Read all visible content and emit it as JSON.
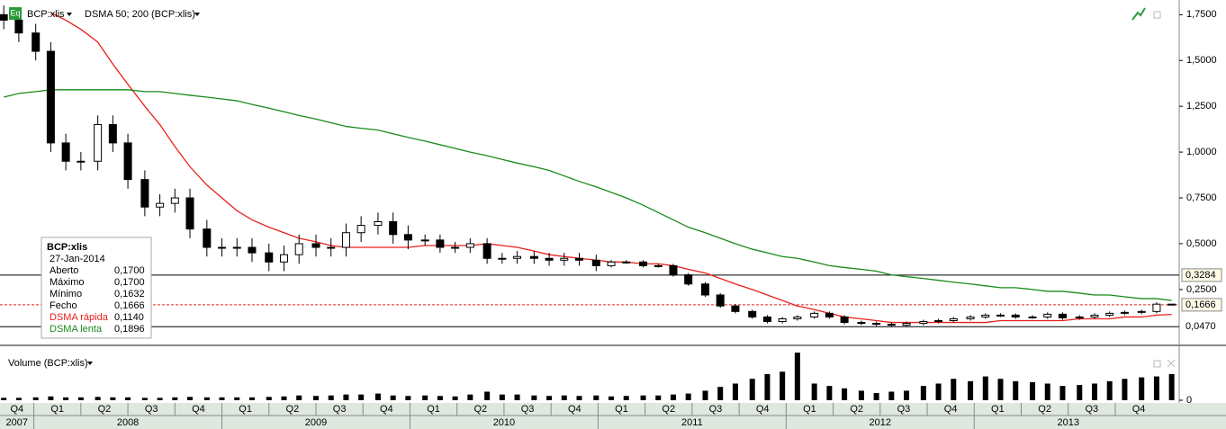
{
  "header": {
    "icon": "Eq",
    "symbol": "BCP:xlis",
    "indicator": "DSMA 50; 200 (BCP:xlis)",
    "volume_title": "Volume (BCP:xlis)"
  },
  "info_box": {
    "title": "BCP:xlis",
    "date": "27-Jan-2014",
    "rows": [
      [
        "Aberto",
        "0,1700"
      ],
      [
        "Máximo",
        "0,1700"
      ],
      [
        "Mínimo",
        "0,1632"
      ],
      [
        "Fecho",
        "0,1666"
      ],
      [
        "DSMA rápida",
        "0,1140"
      ],
      [
        "DSMA lenta",
        "0,1896"
      ]
    ]
  },
  "chart_data": {
    "type": "candlestick",
    "x": [
      2007.84,
      2007.92,
      2008.01,
      2008.09,
      2008.17,
      2008.25,
      2008.34,
      2008.42,
      2008.5,
      2008.59,
      2008.67,
      2008.75,
      2008.83,
      2008.92,
      2009.0,
      2009.08,
      2009.16,
      2009.25,
      2009.33,
      2009.41,
      2009.5,
      2009.58,
      2009.66,
      2009.74,
      2009.83,
      2009.91,
      2009.99,
      2010.08,
      2010.16,
      2010.24,
      2010.32,
      2010.41,
      2010.49,
      2010.57,
      2010.66,
      2010.74,
      2010.82,
      2010.9,
      2010.99,
      2011.07,
      2011.15,
      2011.24,
      2011.32,
      2011.4,
      2011.48,
      2011.57,
      2011.65,
      2011.73,
      2011.82,
      2011.9,
      2011.98,
      2012.06,
      2012.15,
      2012.23,
      2012.31,
      2012.4,
      2012.48,
      2012.56,
      2012.64,
      2012.73,
      2012.81,
      2012.89,
      2012.98,
      2013.06,
      2013.14,
      2013.22,
      2013.31,
      2013.39,
      2013.47,
      2013.56,
      2013.64,
      2013.72,
      2013.8,
      2013.89,
      2013.97,
      2014.05
    ],
    "open": [
      1.75,
      1.72,
      1.65,
      1.55,
      1.05,
      0.95,
      0.95,
      1.15,
      1.05,
      0.85,
      0.7,
      0.72,
      0.75,
      0.58,
      0.48,
      0.48,
      0.48,
      0.45,
      0.4,
      0.44,
      0.5,
      0.48,
      0.48,
      0.56,
      0.6,
      0.62,
      0.55,
      0.52,
      0.52,
      0.48,
      0.48,
      0.5,
      0.42,
      0.42,
      0.43,
      0.42,
      0.41,
      0.42,
      0.41,
      0.38,
      0.4,
      0.4,
      0.38,
      0.38,
      0.33,
      0.28,
      0.22,
      0.16,
      0.13,
      0.1,
      0.075,
      0.09,
      0.1,
      0.12,
      0.1,
      0.07,
      0.065,
      0.06,
      0.055,
      0.065,
      0.075,
      0.08,
      0.09,
      0.1,
      0.11,
      0.11,
      0.1,
      0.1,
      0.115,
      0.095,
      0.1,
      0.11,
      0.12,
      0.125,
      0.13,
      0.17
    ],
    "high": [
      1.8,
      1.77,
      1.7,
      1.6,
      1.1,
      1.0,
      1.2,
      1.2,
      1.1,
      0.9,
      0.77,
      0.8,
      0.8,
      0.63,
      0.53,
      0.53,
      0.53,
      0.5,
      0.49,
      0.55,
      0.55,
      0.53,
      0.61,
      0.65,
      0.67,
      0.67,
      0.6,
      0.55,
      0.55,
      0.51,
      0.53,
      0.53,
      0.45,
      0.46,
      0.46,
      0.45,
      0.45,
      0.45,
      0.44,
      0.41,
      0.41,
      0.41,
      0.39,
      0.39,
      0.34,
      0.29,
      0.23,
      0.17,
      0.14,
      0.11,
      0.1,
      0.11,
      0.13,
      0.13,
      0.11,
      0.08,
      0.075,
      0.07,
      0.075,
      0.085,
      0.09,
      0.1,
      0.11,
      0.12,
      0.12,
      0.12,
      0.11,
      0.125,
      0.125,
      0.11,
      0.12,
      0.13,
      0.135,
      0.14,
      0.18,
      0.17
    ],
    "low": [
      1.67,
      1.6,
      1.5,
      1.0,
      0.9,
      0.9,
      0.9,
      1.0,
      0.8,
      0.65,
      0.65,
      0.67,
      0.53,
      0.43,
      0.43,
      0.43,
      0.4,
      0.35,
      0.35,
      0.39,
      0.43,
      0.43,
      0.43,
      0.51,
      0.55,
      0.5,
      0.47,
      0.49,
      0.45,
      0.45,
      0.45,
      0.39,
      0.39,
      0.39,
      0.39,
      0.38,
      0.38,
      0.38,
      0.35,
      0.37,
      0.39,
      0.37,
      0.37,
      0.32,
      0.27,
      0.21,
      0.15,
      0.12,
      0.09,
      0.065,
      0.065,
      0.08,
      0.09,
      0.09,
      0.06,
      0.055,
      0.05,
      0.045,
      0.045,
      0.055,
      0.065,
      0.07,
      0.08,
      0.09,
      0.1,
      0.09,
      0.09,
      0.09,
      0.085,
      0.085,
      0.09,
      0.1,
      0.11,
      0.115,
      0.12,
      0.1632
    ],
    "close": [
      1.72,
      1.65,
      1.55,
      1.05,
      0.95,
      0.95,
      1.15,
      1.05,
      0.85,
      0.7,
      0.72,
      0.75,
      0.58,
      0.48,
      0.48,
      0.48,
      0.45,
      0.4,
      0.44,
      0.5,
      0.48,
      0.48,
      0.56,
      0.6,
      0.62,
      0.55,
      0.52,
      0.52,
      0.48,
      0.48,
      0.5,
      0.42,
      0.42,
      0.43,
      0.42,
      0.41,
      0.42,
      0.41,
      0.38,
      0.4,
      0.4,
      0.38,
      0.38,
      0.33,
      0.28,
      0.22,
      0.16,
      0.13,
      0.1,
      0.075,
      0.09,
      0.1,
      0.12,
      0.1,
      0.07,
      0.065,
      0.06,
      0.055,
      0.065,
      0.075,
      0.08,
      0.09,
      0.1,
      0.11,
      0.11,
      0.1,
      0.1,
      0.115,
      0.095,
      0.1,
      0.11,
      0.12,
      0.125,
      0.13,
      0.17,
      0.1666
    ],
    "series": [
      {
        "name": "DSMA rápida",
        "color": "#e8201c",
        "values": [
          null,
          null,
          null,
          1.76,
          1.72,
          1.67,
          1.6,
          1.48,
          1.37,
          1.25,
          1.15,
          1.03,
          0.92,
          0.82,
          0.75,
          0.68,
          0.63,
          0.59,
          0.56,
          0.53,
          0.51,
          0.49,
          0.48,
          0.48,
          0.48,
          0.48,
          0.48,
          0.49,
          0.49,
          0.49,
          0.49,
          0.5,
          0.49,
          0.48,
          0.46,
          0.44,
          0.43,
          0.42,
          0.41,
          0.4,
          0.4,
          0.39,
          0.39,
          0.38,
          0.36,
          0.34,
          0.31,
          0.28,
          0.25,
          0.22,
          0.19,
          0.16,
          0.14,
          0.12,
          0.1,
          0.09,
          0.08,
          0.07,
          0.07,
          0.07,
          0.07,
          0.07,
          0.07,
          0.07,
          0.08,
          0.08,
          0.08,
          0.08,
          0.08,
          0.09,
          0.09,
          0.09,
          0.1,
          0.1,
          0.11,
          0.114
        ]
      },
      {
        "name": "DSMA lenta",
        "color": "#1a8a1a",
        "values": [
          1.3,
          1.32,
          1.33,
          1.34,
          1.34,
          1.34,
          1.34,
          1.34,
          1.34,
          1.33,
          1.33,
          1.32,
          1.31,
          1.3,
          1.29,
          1.28,
          1.26,
          1.24,
          1.22,
          1.2,
          1.18,
          1.16,
          1.14,
          1.13,
          1.12,
          1.1,
          1.08,
          1.06,
          1.04,
          1.02,
          1.0,
          0.98,
          0.96,
          0.94,
          0.92,
          0.9,
          0.87,
          0.84,
          0.81,
          0.78,
          0.75,
          0.71,
          0.67,
          0.63,
          0.59,
          0.56,
          0.53,
          0.5,
          0.47,
          0.45,
          0.43,
          0.42,
          0.4,
          0.38,
          0.37,
          0.36,
          0.35,
          0.33,
          0.32,
          0.31,
          0.3,
          0.29,
          0.28,
          0.27,
          0.26,
          0.26,
          0.25,
          0.24,
          0.24,
          0.23,
          0.22,
          0.22,
          0.21,
          0.2,
          0.2,
          0.19
        ]
      }
    ],
    "volume": [
      5,
      5,
      6,
      8,
      6,
      6,
      7,
      6,
      6,
      5,
      5,
      6,
      7,
      6,
      6,
      6,
      6,
      7,
      8,
      10,
      9,
      10,
      12,
      12,
      14,
      10,
      9,
      10,
      9,
      8,
      12,
      18,
      12,
      12,
      10,
      9,
      10,
      9,
      10,
      8,
      9,
      10,
      10,
      12,
      14,
      20,
      28,
      35,
      45,
      55,
      60,
      100,
      35,
      30,
      25,
      20,
      15,
      18,
      20,
      30,
      35,
      45,
      40,
      50,
      45,
      40,
      38,
      35,
      30,
      32,
      35,
      40,
      45,
      48,
      50,
      55
    ],
    "xlim": [
      2007.82,
      2014.09
    ],
    "ylim": [
      -0.05,
      1.83
    ],
    "vlim": [
      0,
      104
    ],
    "yticks": [
      {
        "value": 0.25,
        "label": "0,2500"
      },
      {
        "value": 0.5,
        "label": "0,5000"
      },
      {
        "value": 0.75,
        "label": "0,7500"
      },
      {
        "value": 1.0,
        "label": "1,0000"
      },
      {
        "value": 1.25,
        "label": "1,2500"
      },
      {
        "value": 1.5,
        "label": "1,5000"
      },
      {
        "value": 1.75,
        "label": "1,7500"
      }
    ],
    "vticks": [
      0
    ],
    "hlines": [
      {
        "value": 0.3284,
        "label": "0,3284"
      },
      {
        "value": 0.1666,
        "label": "0,1666"
      },
      {
        "value": 0.047,
        "label": "0,0470"
      }
    ],
    "quarters": [
      {
        "value": 2007.75,
        "label": "Q4"
      },
      {
        "value": 2008.0,
        "label": "Q1"
      },
      {
        "value": 2008.25,
        "label": "Q2"
      },
      {
        "value": 2008.5,
        "label": "Q3"
      },
      {
        "value": 2008.75,
        "label": "Q4"
      },
      {
        "value": 2009.0,
        "label": "Q1"
      },
      {
        "value": 2009.25,
        "label": "Q2"
      },
      {
        "value": 2009.5,
        "label": "Q3"
      },
      {
        "value": 2009.75,
        "label": "Q4"
      },
      {
        "value": 2010.0,
        "label": "Q1"
      },
      {
        "value": 2010.25,
        "label": "Q2"
      },
      {
        "value": 2010.5,
        "label": "Q3"
      },
      {
        "value": 2010.75,
        "label": "Q4"
      },
      {
        "value": 2011.0,
        "label": "Q1"
      },
      {
        "value": 2011.25,
        "label": "Q2"
      },
      {
        "value": 2011.5,
        "label": "Q3"
      },
      {
        "value": 2011.75,
        "label": "Q4"
      },
      {
        "value": 2012.0,
        "label": "Q1"
      },
      {
        "value": 2012.25,
        "label": "Q2"
      },
      {
        "value": 2012.5,
        "label": "Q3"
      },
      {
        "value": 2012.75,
        "label": "Q4"
      },
      {
        "value": 2013.0,
        "label": "Q1"
      },
      {
        "value": 2013.25,
        "label": "Q2"
      },
      {
        "value": 2013.5,
        "label": "Q3"
      },
      {
        "value": 2013.75,
        "label": "Q4"
      }
    ],
    "years": [
      {
        "value": 2007,
        "label": "2007"
      },
      {
        "value": 2008,
        "label": "2008"
      },
      {
        "value": 2009,
        "label": "2009"
      },
      {
        "value": 2010,
        "label": "2010"
      },
      {
        "value": 2011,
        "label": "2011"
      },
      {
        "value": 2012,
        "label": "2012"
      },
      {
        "value": 2013,
        "label": "2013"
      }
    ],
    "up_color": "#ffffff",
    "down_color": "#000000",
    "volume_color": "#000000"
  }
}
